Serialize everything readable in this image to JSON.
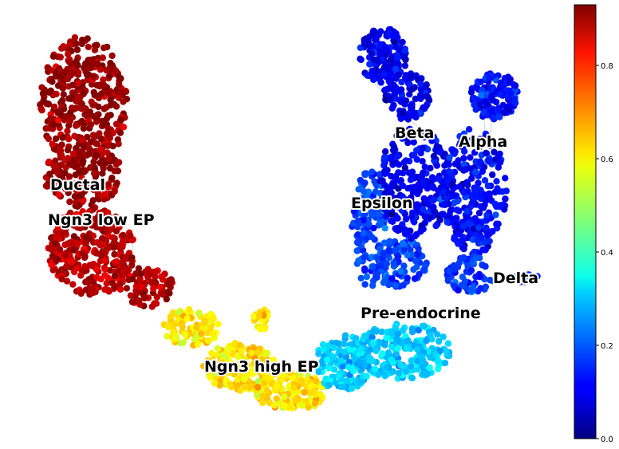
{
  "chart_data": {
    "type": "scatter",
    "title": "",
    "xlabel": "",
    "ylabel": "",
    "axes_visible": false,
    "colormap": "jet",
    "colorbar": {
      "range": [
        0.0,
        0.93
      ],
      "ticks": [
        0.0,
        0.2,
        0.4,
        0.6,
        0.8
      ],
      "tick_labels": [
        "0.0",
        "0.2",
        "0.4",
        "0.6",
        "0.8"
      ],
      "placement": "right"
    },
    "clusters": [
      {
        "label": "Ductal",
        "value": 0.91
      },
      {
        "label": "Ngn3 low EP",
        "value": 0.88
      },
      {
        "label": "Ngn3 high EP",
        "value": 0.6
      },
      {
        "label": "Pre-endocrine",
        "value": 0.3
      },
      {
        "label": "Epsilon",
        "value": 0.18
      },
      {
        "label": "Beta",
        "value": 0.1
      },
      {
        "label": "Alpha",
        "value": 0.12
      },
      {
        "label": "Delta",
        "value": 0.16
      }
    ]
  }
}
